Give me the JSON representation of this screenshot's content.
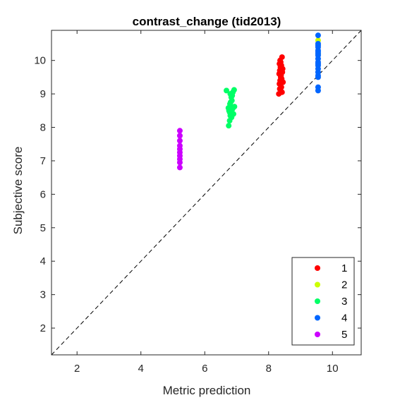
{
  "chart_data": {
    "type": "scatter",
    "title": "contrast_change (tid2013)",
    "xlabel": "Metric prediction",
    "ylabel": "Subjective score",
    "xlim": [
      1.2,
      10.9
    ],
    "ylim": [
      1.2,
      10.9
    ],
    "xticks": [
      2,
      4,
      6,
      8,
      10
    ],
    "yticks": [
      2,
      3,
      4,
      5,
      6,
      7,
      8,
      9,
      10
    ],
    "grid": false,
    "legend_position": "bottom-right",
    "reference_line": "y = x (dashed)",
    "series": [
      {
        "name": "1",
        "color": "#ff0000",
        "points": [
          [
            8.32,
            9.0
          ],
          [
            8.35,
            9.15
          ],
          [
            8.34,
            9.3
          ],
          [
            8.36,
            9.4
          ],
          [
            8.38,
            9.5
          ],
          [
            8.33,
            9.6
          ],
          [
            8.35,
            9.7
          ],
          [
            8.37,
            9.8
          ],
          [
            8.34,
            9.9
          ],
          [
            8.36,
            10.0
          ],
          [
            8.42,
            10.1
          ],
          [
            8.4,
            9.2
          ],
          [
            8.41,
            9.45
          ],
          [
            8.39,
            9.55
          ],
          [
            8.43,
            9.65
          ],
          [
            8.44,
            9.75
          ],
          [
            8.4,
            9.85
          ],
          [
            8.38,
            9.95
          ],
          [
            8.45,
            9.35
          ],
          [
            8.42,
            9.05
          ]
        ]
      },
      {
        "name": "2",
        "color": "#ccff00",
        "points": [
          [
            9.55,
            10.6
          ],
          [
            9.55,
            10.2
          ]
        ]
      },
      {
        "name": "3",
        "color": "#00ff66",
        "points": [
          [
            6.68,
            9.1
          ],
          [
            6.75,
            8.05
          ],
          [
            6.78,
            8.2
          ],
          [
            6.8,
            8.35
          ],
          [
            6.76,
            8.5
          ],
          [
            6.82,
            8.6
          ],
          [
            6.79,
            8.7
          ],
          [
            6.85,
            8.8
          ],
          [
            6.83,
            8.9
          ],
          [
            6.8,
            9.0
          ],
          [
            6.88,
            9.05
          ],
          [
            6.92,
            9.12
          ],
          [
            6.87,
            8.55
          ],
          [
            6.9,
            8.4
          ],
          [
            6.93,
            8.62
          ],
          [
            6.78,
            8.45
          ],
          [
            6.84,
            8.3
          ],
          [
            6.81,
            8.75
          ],
          [
            6.86,
            8.95
          ],
          [
            6.74,
            8.58
          ]
        ]
      },
      {
        "name": "4",
        "color": "#0066ff",
        "points": [
          [
            9.55,
            10.75
          ],
          [
            9.55,
            10.5
          ],
          [
            9.55,
            10.4
          ],
          [
            9.55,
            10.3
          ],
          [
            9.55,
            10.2
          ],
          [
            9.55,
            10.15
          ],
          [
            9.55,
            10.05
          ],
          [
            9.55,
            9.95
          ],
          [
            9.55,
            9.85
          ],
          [
            9.55,
            9.75
          ],
          [
            9.55,
            9.65
          ],
          [
            9.55,
            9.55
          ],
          [
            9.55,
            9.5
          ],
          [
            9.55,
            9.2
          ],
          [
            9.55,
            9.1
          ],
          [
            9.55,
            10.45
          ],
          [
            9.55,
            10.25
          ],
          [
            9.55,
            9.9
          ]
        ]
      },
      {
        "name": "5",
        "color": "#cc00ff",
        "points": [
          [
            5.22,
            6.8
          ],
          [
            5.22,
            6.95
          ],
          [
            5.22,
            7.05
          ],
          [
            5.22,
            7.15
          ],
          [
            5.22,
            7.25
          ],
          [
            5.22,
            7.35
          ],
          [
            5.22,
            7.45
          ],
          [
            5.22,
            7.6
          ],
          [
            5.22,
            7.75
          ],
          [
            5.22,
            7.9
          ]
        ]
      }
    ]
  }
}
